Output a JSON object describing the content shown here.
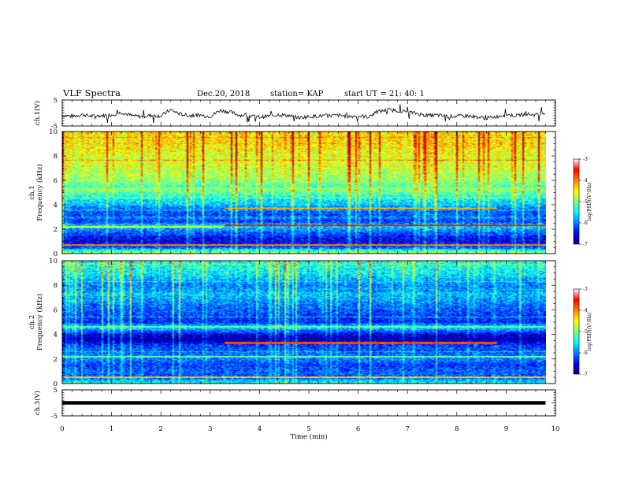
{
  "header": {
    "title": "VLF Spectra",
    "date": "Dec.20, 2018",
    "station": "station= KAP",
    "start": "start  UT =  21: 40: 1"
  },
  "chart_data": [
    {
      "type": "line",
      "name": "ch1-waveform",
      "ylabel": "ch.1(V)",
      "xlim": [
        0,
        10
      ],
      "ylim": [
        -5,
        5
      ],
      "x_ticks": [
        0,
        1,
        2,
        3,
        4,
        5,
        6,
        7,
        8,
        9,
        10
      ],
      "y_ticks": [
        {
          "v": 5,
          "label": "5"
        },
        {
          "v": -5,
          "label": "-5"
        }
      ],
      "x": [
        0,
        0.2,
        0.4,
        0.6,
        0.8,
        1.0,
        1.2,
        1.4,
        1.6,
        1.8,
        2.0,
        2.2,
        2.4,
        2.6,
        2.8,
        3.0,
        3.2,
        3.4,
        3.6,
        3.8,
        4.0,
        4.2,
        4.4,
        4.6,
        4.8,
        5.0,
        5.2,
        5.4,
        5.6,
        5.8,
        6.0,
        6.2,
        6.4,
        6.6,
        6.8,
        7.0,
        7.2,
        7.4,
        7.6,
        7.8,
        8.0,
        8.2,
        8.4,
        8.6,
        8.8,
        9.0,
        9.2,
        9.4,
        9.6,
        9.8
      ],
      "values": [
        -0.8,
        -1.3,
        -0.6,
        -1.2,
        -1.0,
        -0.7,
        0.3,
        -1.0,
        -1.4,
        -0.9,
        -1.1,
        1.2,
        -0.5,
        -1.0,
        -0.8,
        -1.3,
        1.0,
        0.4,
        -0.8,
        -1.1,
        -1.6,
        -1.2,
        -0.6,
        -1.0,
        -1.8,
        -1.4,
        -1.2,
        -1.0,
        -0.9,
        -1.3,
        -1.1,
        -1.5,
        0.5,
        1.2,
        0.9,
        0.4,
        -0.2,
        -1.0,
        -0.8,
        -1.3,
        -1.2,
        -1.1,
        -1.5,
        -2.0,
        -1.4,
        -0.6,
        -1.0,
        -0.4,
        -0.7,
        0.3
      ]
    },
    {
      "type": "heatmap",
      "name": "ch1-spectrogram",
      "ylabel": "ch.1\nFrequency (kHz)",
      "xlim": [
        0,
        10
      ],
      "ylim": [
        0,
        10
      ],
      "x_ticks": [
        0,
        1,
        2,
        3,
        4,
        5,
        6,
        7,
        8,
        9,
        10
      ],
      "y_ticks": [
        0,
        2,
        4,
        6,
        8,
        10
      ],
      "value_range": [
        -7,
        -3
      ],
      "colorbar_label": "log(PSD)(V²/Hz)",
      "colorbar_ticks": [
        -3,
        -4,
        -5,
        -6,
        -7
      ],
      "data_extent_x": [
        0,
        9.8
      ],
      "bands_kHz": [
        {
          "f": 9.0,
          "level": -4.4
        },
        {
          "f": 8.0,
          "level": -4.6
        },
        {
          "f": 7.0,
          "level": -4.7
        },
        {
          "f": 6.0,
          "level": -4.9
        },
        {
          "f": 5.5,
          "level": -5.2
        },
        {
          "f": 5.2,
          "level": -5.0
        },
        {
          "f": 4.6,
          "level": -5.4
        },
        {
          "f": 4.0,
          "level": -5.7
        },
        {
          "f": 3.6,
          "level": -6.1
        },
        {
          "f": 3.0,
          "level": -6.2
        },
        {
          "f": 2.6,
          "level": -6.3
        },
        {
          "f": 2.3,
          "level": -5.6
        },
        {
          "f": 2.0,
          "level": -5.9
        },
        {
          "f": 1.5,
          "level": -6.4
        },
        {
          "f": 1.0,
          "level": -6.6
        },
        {
          "f": 0.5,
          "level": -6.2
        },
        {
          "f": 0.1,
          "level": -5.0
        }
      ],
      "lines_kHz": [
        {
          "f": 3.7,
          "t0": 3.3,
          "t1": 8.8,
          "level": -4.2
        },
        {
          "f": 2.3,
          "t0": 3.3,
          "t1": 9.8,
          "level": -3.6
        },
        {
          "f": 2.2,
          "t0": 0.0,
          "t1": 3.3,
          "level": -4.6
        },
        {
          "f": 5.3,
          "t0": 0.0,
          "t1": 9.8,
          "level": -5.0
        },
        {
          "f": 0.7,
          "t0": 0.0,
          "t1": 9.8,
          "level": -4.0
        }
      ]
    },
    {
      "type": "heatmap",
      "name": "ch2-spectrogram",
      "ylabel": "ch.2\nFrequency (kHz)",
      "xlim": [
        0,
        10
      ],
      "ylim": [
        0,
        10
      ],
      "x_ticks": [
        0,
        1,
        2,
        3,
        4,
        5,
        6,
        7,
        8,
        9,
        10
      ],
      "y_ticks": [
        0,
        2,
        4,
        6,
        8,
        10
      ],
      "value_range": [
        -7,
        -3
      ],
      "colorbar_label": "log(PSD)(V²/Hz)",
      "colorbar_ticks": [
        -3,
        -4,
        -5,
        -6,
        -7
      ],
      "data_extent_x": [
        0,
        9.8
      ],
      "bands_kHz": [
        {
          "f": 9.5,
          "level": -5.4
        },
        {
          "f": 8.8,
          "level": -5.6
        },
        {
          "f": 8.0,
          "level": -6.0
        },
        {
          "f": 7.3,
          "level": -5.7
        },
        {
          "f": 6.5,
          "level": -6.0
        },
        {
          "f": 5.8,
          "level": -6.2
        },
        {
          "f": 5.0,
          "level": -6.4
        },
        {
          "f": 4.6,
          "level": -5.5
        },
        {
          "f": 4.0,
          "level": -6.6
        },
        {
          "f": 3.6,
          "level": -6.9
        },
        {
          "f": 3.1,
          "level": -6.3
        },
        {
          "f": 2.5,
          "level": -6.1
        },
        {
          "f": 2.0,
          "level": -6.0
        },
        {
          "f": 1.5,
          "level": -6.3
        },
        {
          "f": 1.0,
          "level": -6.1
        },
        {
          "f": 0.5,
          "level": -6.2
        },
        {
          "f": 0.1,
          "level": -5.5
        }
      ],
      "lines_kHz": [
        {
          "f": 3.3,
          "t0": 3.3,
          "t1": 8.8,
          "level": -3.8
        },
        {
          "f": 2.2,
          "t0": 0.0,
          "t1": 9.8,
          "level": -5.1
        },
        {
          "f": 4.6,
          "t0": 0.0,
          "t1": 9.8,
          "level": -5.2
        },
        {
          "f": 0.5,
          "t0": 0.0,
          "t1": 9.8,
          "level": -4.3
        }
      ]
    },
    {
      "type": "line",
      "name": "ch3-waveform",
      "ylabel": "ch.3(V)",
      "xlabel": "Time  (min)",
      "xlim": [
        0,
        10
      ],
      "ylim": [
        -5,
        5
      ],
      "x_ticks": [
        0,
        1,
        2,
        3,
        4,
        5,
        6,
        7,
        8,
        9,
        10
      ],
      "y_ticks": [
        {
          "v": 5,
          "label": "5"
        },
        {
          "v": 0,
          "label": ""
        },
        {
          "v": -5,
          "label": "-5"
        }
      ],
      "x": [
        0,
        9.8
      ],
      "values": [
        0.0,
        0.0
      ]
    }
  ]
}
